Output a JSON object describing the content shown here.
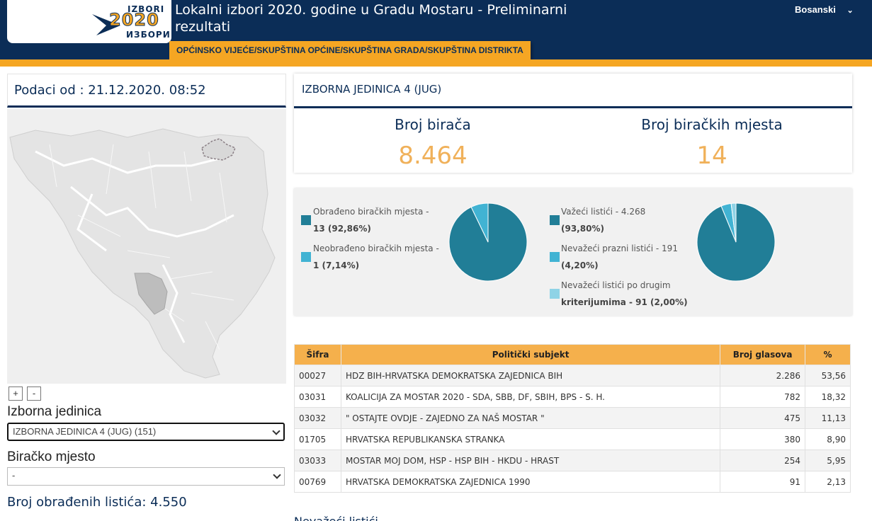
{
  "header": {
    "logo_top": "IZBORI",
    "logo_year": "2020",
    "logo_bottom": "ИЗБОРИ",
    "title": "Lokalni izbori 2020. godine u Gradu Mostaru - Preliminarni rezultati",
    "language": "Bosanski",
    "subtitle": "OPĆINSKO VIJEĆE/SKUPŠTINA OPĆINE/SKUPŠTINA GRADA/SKUPŠTINA DISTRIKTA"
  },
  "left": {
    "date_label": "Podaci od : 21.12.2020. 08:52",
    "zoom_in": "+",
    "zoom_out": "-",
    "unit_label": "Izborna jedinica",
    "unit_select": "IZBORNA JEDINICA 4 (JUG) (151)",
    "station_label": "Biračko mjesto",
    "station_select": "-",
    "processed_ballots": "Broj obrađenih listića: 4.550"
  },
  "unit": {
    "title": "IZBORNA JEDINICA 4 (JUG)",
    "voters_label": "Broj birača",
    "voters_value": "8.464",
    "stations_label": "Broj biračkih mjesta",
    "stations_value": "14"
  },
  "pies": {
    "stations": {
      "legend": [
        {
          "line1": "Obrađeno biračkih mjesta -",
          "line2": "13 (92,86%)",
          "color": "#217e97",
          "value": 92.86
        },
        {
          "line1": "Neobrađeno biračkih mjesta -",
          "line2": "1 (7,14%)",
          "color": "#41b3d3",
          "value": 7.14
        }
      ]
    },
    "ballots": {
      "legend": [
        {
          "line1": "Važeći listići - 4.268",
          "line2": "(93,80%)",
          "color": "#217e97",
          "value": 93.8
        },
        {
          "line1": "Nevažeći prazni listići - 191",
          "line2": "(4,20%)",
          "color": "#41b3d3",
          "value": 4.2
        },
        {
          "line1": "Nevažeći listići po drugim",
          "line2": "kriterijumima - 91 (2,00%)",
          "color": "#8fd3e6",
          "value": 2.0
        }
      ]
    }
  },
  "table": {
    "headers": [
      "Šifra",
      "Politički subjekt",
      "Broj glasova",
      "%"
    ],
    "rows": [
      [
        "00027",
        "HDZ BIH-HRVATSKA DEMOKRATSKA ZAJEDNICA BIH",
        "2.286",
        "53,56"
      ],
      [
        "03031",
        "KOALICIJA ZA MOSTAR 2020 - SDA, SBB, DF, SBIH, BPS - S. H.",
        "782",
        "18,32"
      ],
      [
        "03032",
        "\" OSTAJTE OVDJE - ZAJEDNO ZA NAŠ MOSTAR \"",
        "475",
        "11,13"
      ],
      [
        "01705",
        "HRVATSKA REPUBLIKANSKA STRANKA",
        "380",
        "8,90"
      ],
      [
        "03033",
        "MOSTAR MOJ DOM, HSP - HSP BIH - HKDU - HRAST",
        "254",
        "5,95"
      ],
      [
        "00769",
        "HRVATSKA DEMOKRATSKA ZAJEDNICA 1990",
        "91",
        "2,13"
      ]
    ]
  },
  "footer_partial": "Nevažeći listići"
}
